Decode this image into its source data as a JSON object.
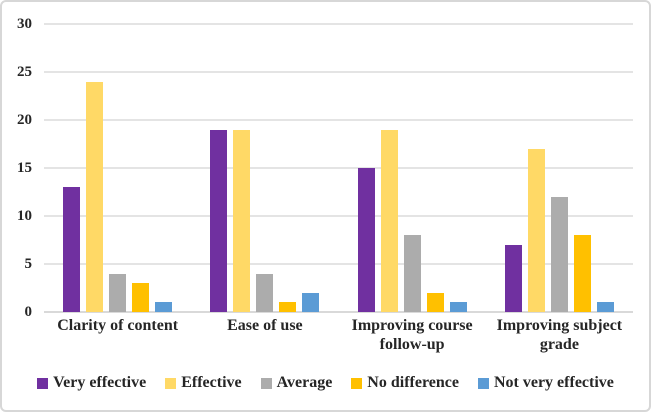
{
  "figure": {
    "background": "#FFFFFF",
    "border_color": "#D7D7D7"
  },
  "chart_data": {
    "type": "bar",
    "title": "",
    "xlabel": "",
    "ylabel": "",
    "categories": [
      "Clarity of content",
      "Ease of use",
      "Improving course follow-up",
      "Improving subject grade"
    ],
    "series": [
      {
        "name": "Very effective",
        "color": "#7030A0",
        "values": [
          13,
          19,
          15,
          7
        ]
      },
      {
        "name": "Effective",
        "color": "#FFD966",
        "values": [
          24,
          19,
          19,
          17
        ]
      },
      {
        "name": "Average",
        "color": "#ACACAC",
        "values": [
          4,
          4,
          8,
          12
        ]
      },
      {
        "name": "No difference",
        "color": "#FFC000",
        "values": [
          3,
          1,
          2,
          8
        ]
      },
      {
        "name": "Not very effective",
        "color": "#5B9BD5",
        "values": [
          1,
          2,
          1,
          1
        ]
      }
    ],
    "ylim": [
      0,
      30
    ],
    "yticks": [
      0,
      5,
      10,
      15,
      20,
      25,
      30
    ],
    "grid": true,
    "gridline_color": "#E4E4E4",
    "axis_line_color": "#D9D9D9",
    "text_color": "#262626",
    "legend_position": "bottom"
  }
}
